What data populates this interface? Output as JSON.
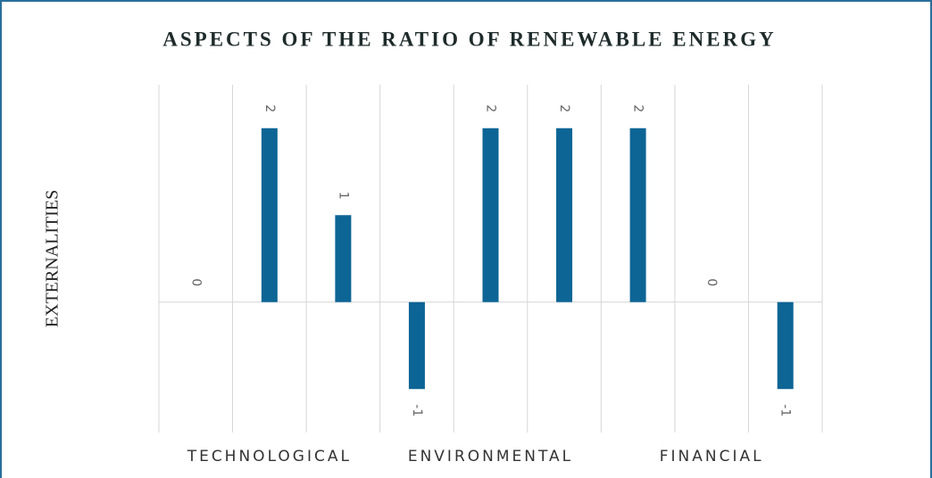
{
  "chart_data": {
    "type": "bar",
    "title": "ASPECTS OF THE RATIO OF RENEWABLE ENERGY",
    "y_label": "EXTERNALITIES",
    "categories": [
      null,
      "TECHNOLOGICAL",
      null,
      null,
      "ENVIRONMENTAL",
      null,
      null,
      "FINANCIAL",
      null
    ],
    "values": [
      0,
      2,
      1,
      -1,
      2,
      2,
      2,
      0,
      -1
    ],
    "color": "#0d6595",
    "ylim": [
      -1.5,
      2.5
    ],
    "grid": true
  }
}
